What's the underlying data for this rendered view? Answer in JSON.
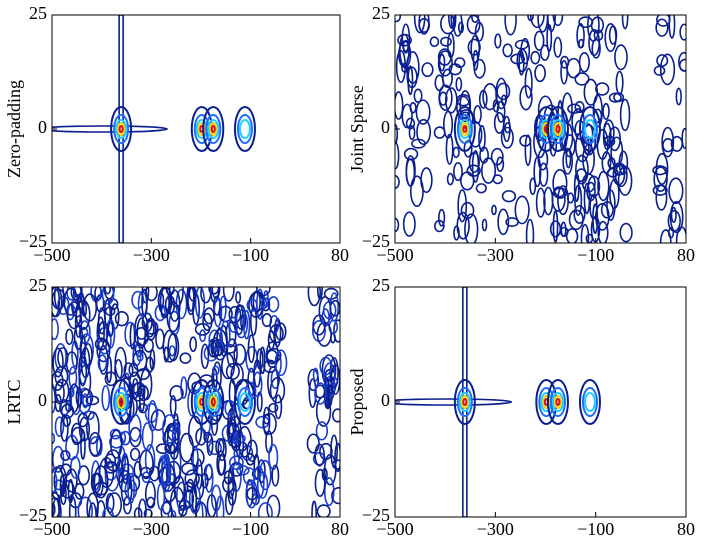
{
  "chart_data": [
    {
      "type": "contour",
      "ylabel": "Zero-padding",
      "xlim": [
        -500,
        80
      ],
      "ylim": [
        -25,
        25
      ],
      "xticks": [
        {
          "value": -500,
          "label": "−500"
        },
        {
          "value": -300,
          "label": "−300"
        },
        {
          "value": -100,
          "label": "−100"
        },
        80
      ],
      "yticks": [
        {
          "value": -25,
          "label": "−25"
        },
        0,
        25
      ]
    },
    {
      "type": "contour",
      "ylabel": "Joint Sparse",
      "xlim": [
        -500,
        80
      ],
      "ylim": [
        -25,
        25
      ],
      "xticks": [
        {
          "value": -500,
          "label": "−500"
        },
        {
          "value": -300,
          "label": "−300"
        },
        {
          "value": -100,
          "label": "−100"
        },
        80
      ],
      "yticks": [
        {
          "value": -25,
          "label": "−25"
        },
        0,
        25
      ]
    },
    {
      "type": "contour",
      "ylabel": "LRTC",
      "xlim": [
        -500,
        80
      ],
      "ylim": [
        -25,
        25
      ],
      "xticks": [
        {
          "value": -500,
          "label": "−500"
        },
        {
          "value": -300,
          "label": "−300"
        },
        {
          "value": -100,
          "label": "−100"
        },
        80
      ],
      "yticks": [
        {
          "value": -25,
          "label": "−25"
        },
        0,
        25
      ]
    },
    {
      "type": "contour",
      "ylabel": "Proposed",
      "xlim": [
        -500,
        80
      ],
      "ylim": [
        -25,
        25
      ],
      "xticks": [
        {
          "value": -500,
          "label": "−500"
        },
        {
          "value": -300,
          "label": "−300"
        },
        {
          "value": -100,
          "label": "−100"
        },
        80
      ],
      "yticks": [
        {
          "value": -25,
          "label": "−25"
        },
        0,
        25
      ]
    }
  ]
}
